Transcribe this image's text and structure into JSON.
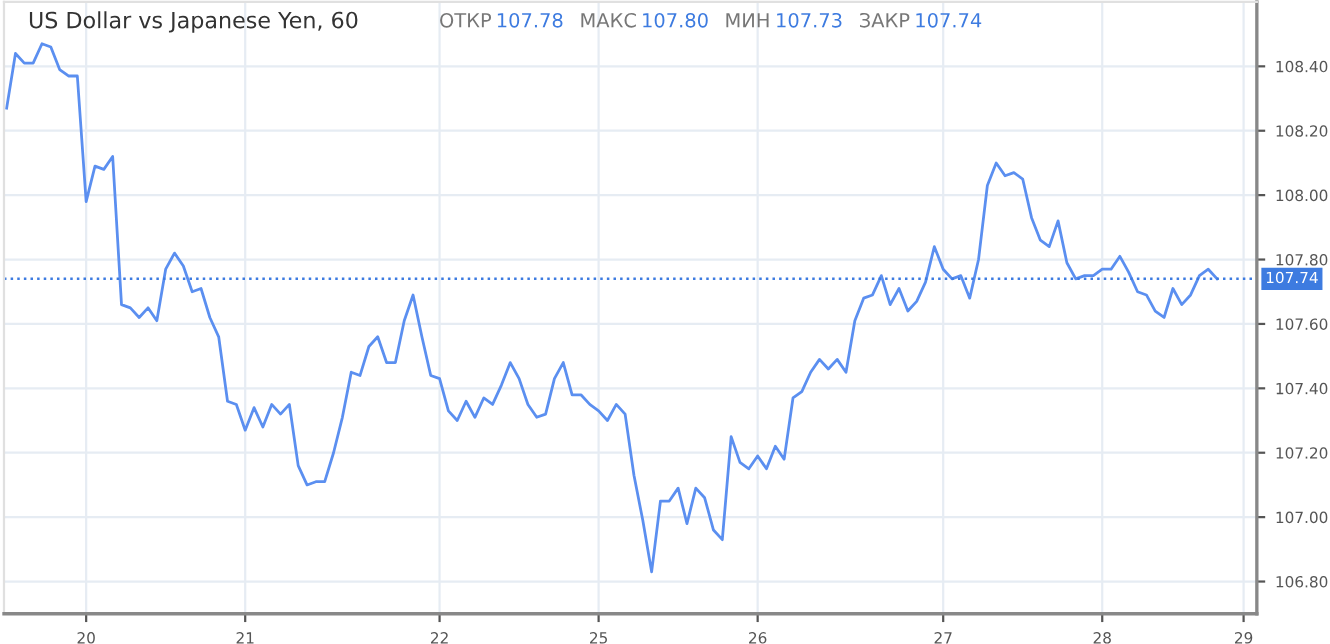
{
  "chart_data": {
    "type": "line",
    "title": "US Dollar vs Japanese Yen, 60",
    "annotations": [
      "ОТКР 107.78",
      "МАКС 107.80",
      "МИН 107.73",
      "ЗАКР 107.74"
    ],
    "categories": [
      null,
      null,
      null,
      null,
      null,
      null,
      null,
      null,
      null,
      "20",
      null,
      null,
      null,
      null,
      null,
      null,
      null,
      null,
      null,
      null,
      null,
      null,
      null,
      null,
      null,
      null,
      null,
      "21",
      null,
      null,
      null,
      null,
      null,
      null,
      null,
      null,
      null,
      null,
      null,
      null,
      null,
      null,
      null,
      null,
      null,
      null,
      null,
      null,
      null,
      "22",
      null,
      null,
      null,
      null,
      null,
      null,
      null,
      null,
      null,
      null,
      null,
      null,
      null,
      null,
      null,
      null,
      null,
      "25",
      null,
      null,
      null,
      null,
      null,
      null,
      null,
      null,
      null,
      null,
      null,
      null,
      null,
      null,
      null,
      null,
      null,
      "26",
      null,
      null,
      null,
      null,
      null,
      null,
      null,
      null,
      null,
      null,
      null,
      null,
      null,
      null,
      null,
      null,
      null,
      null,
      null,
      null,
      "27",
      null,
      null,
      null,
      null,
      null,
      null,
      null,
      null,
      null,
      null,
      null,
      null,
      null,
      null,
      null,
      null,
      null,
      "28",
      null,
      null,
      null,
      null,
      null,
      null,
      null,
      null,
      null,
      null,
      null,
      null,
      null,
      null,
      null,
      "29"
    ],
    "series": [
      {
        "color": "#5b8ff0",
        "values": [
          108.27,
          108.44,
          108.41,
          108.41,
          108.47,
          108.46,
          108.39,
          108.37,
          108.37,
          107.98,
          108.09,
          108.08,
          108.12,
          107.66,
          107.65,
          107.62,
          107.65,
          107.61,
          107.77,
          107.82,
          107.78,
          107.7,
          107.71,
          107.62,
          107.56,
          107.36,
          107.35,
          107.27,
          107.34,
          107.28,
          107.35,
          107.32,
          107.35,
          107.16,
          107.1,
          107.11,
          107.11,
          107.2,
          107.31,
          107.45,
          107.44,
          107.53,
          107.56,
          107.48,
          107.48,
          107.61,
          107.69,
          107.56,
          107.44,
          107.43,
          107.33,
          107.3,
          107.36,
          107.31,
          107.37,
          107.35,
          107.41,
          107.48,
          107.43,
          107.35,
          107.31,
          107.32,
          107.43,
          107.48,
          107.38,
          107.38,
          107.35,
          107.33,
          107.3,
          107.35,
          107.32,
          107.13,
          106.99,
          106.83,
          107.05,
          107.05,
          107.09,
          106.98,
          107.09,
          107.06,
          106.96,
          106.93,
          107.25,
          107.17,
          107.15,
          107.19,
          107.15,
          107.22,
          107.18,
          107.37,
          107.39,
          107.45,
          107.49,
          107.46,
          107.49,
          107.45,
          107.61,
          107.68,
          107.69,
          107.75,
          107.66,
          107.71,
          107.64,
          107.67,
          107.73,
          107.84,
          107.77,
          107.74,
          107.75,
          107.68,
          107.8,
          108.03,
          108.1,
          108.06,
          108.07,
          108.05,
          107.93,
          107.86,
          107.84,
          107.92,
          107.79,
          107.74,
          107.75,
          107.75,
          107.77,
          107.77,
          107.81,
          107.76,
          107.7,
          107.69,
          107.64,
          107.62,
          107.71,
          107.66,
          107.69,
          107.75,
          107.77,
          107.74,
          null,
          null,
          null
        ]
      }
    ],
    "ylim": [
      106.7,
      108.6
    ],
    "yticks": [
      {
        "value": 106.8,
        "label": "106.80"
      },
      {
        "value": 107.0,
        "label": "107.00"
      },
      {
        "value": 107.2,
        "label": "107.20"
      },
      {
        "value": 107.4,
        "label": "107.40"
      },
      {
        "value": 107.6,
        "label": "107.60"
      },
      {
        "value": 107.8,
        "label": "107.80"
      },
      {
        "value": 108.0,
        "label": "108.00"
      },
      {
        "value": 108.2,
        "label": "108.20"
      },
      {
        "value": 108.4,
        "label": "108.40"
      }
    ],
    "ref_lines": [
      {
        "axis": "y",
        "value": 107.74,
        "label": "107.74",
        "color": "#3d7be0",
        "line_style": "dotted"
      }
    ],
    "grid": true,
    "legend": false,
    "marker": "none",
    "line_style": "solid"
  }
}
